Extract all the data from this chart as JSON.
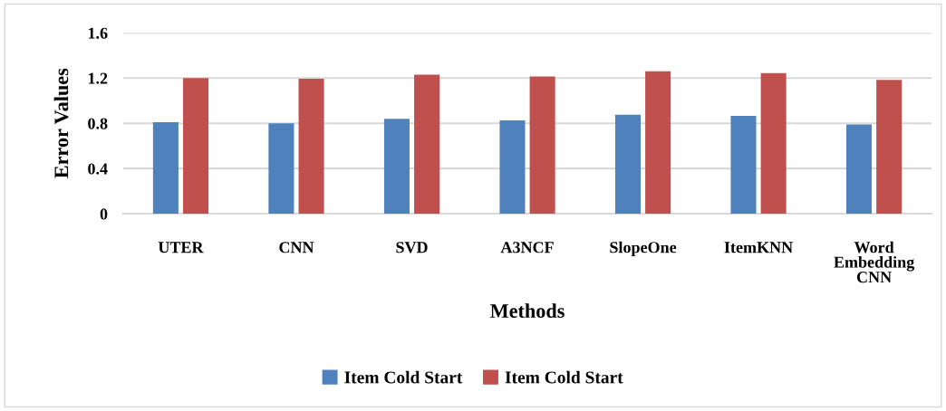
{
  "chart_data": {
    "type": "bar",
    "xlabel": "Methods",
    "ylabel": "Error Values",
    "categories": [
      "UTER",
      "CNN",
      "SVD",
      "A3NCF",
      "SlopeOne",
      "ItemKNN",
      "Word\nEmbedding\nCNN"
    ],
    "series": [
      {
        "name": "Item Cold Start",
        "color": "#4f81bd",
        "values": [
          0.81,
          0.8,
          0.84,
          0.825,
          0.875,
          0.865,
          0.79
        ]
      },
      {
        "name": "Item Cold Start",
        "color": "#c0504d",
        "values": [
          1.2,
          1.195,
          1.23,
          1.215,
          1.26,
          1.245,
          1.185
        ]
      }
    ],
    "ylim": [
      0,
      1.6
    ],
    "yticks": [
      0,
      {
        "value": 0.4,
        "label": "0.4"
      },
      {
        "value": 0.8,
        "label": "0.8"
      },
      {
        "value": 1.2,
        "label": "1.2"
      },
      {
        "value": 1.6,
        "label": "1.6"
      }
    ],
    "grid": "y",
    "legend": "bottom"
  }
}
